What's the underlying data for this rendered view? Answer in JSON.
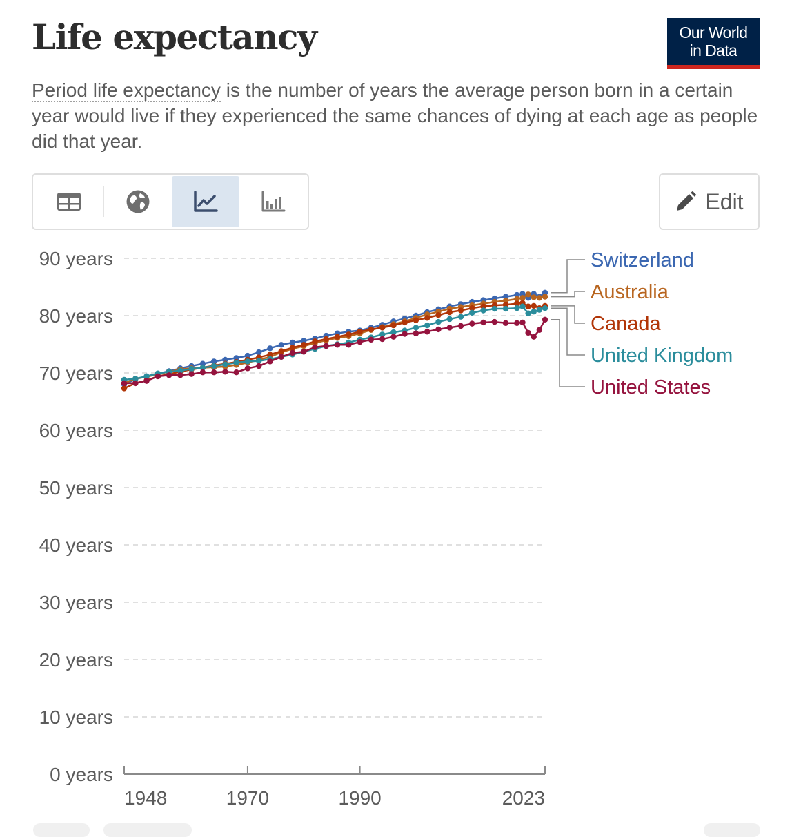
{
  "header": {
    "title": "Life expectancy",
    "logo_line1": "Our World",
    "logo_line2": "in Data",
    "subtitle_term": "Period life expectancy",
    "subtitle_rest": " is the number of years the average person born in a certain year would live if they experienced the same chances of dying at each age as people did that year."
  },
  "toolbar": {
    "tabs": [
      {
        "icon": "table-icon",
        "active": false
      },
      {
        "icon": "globe-icon",
        "active": false
      },
      {
        "icon": "line-chart-icon",
        "active": true
      },
      {
        "icon": "bar-chart-icon",
        "active": false
      }
    ],
    "edit_label": "Edit",
    "edit_icon": "pencil-icon"
  },
  "colors": {
    "text": "#5b5b5b",
    "tab_active": "#dbe5f0",
    "logo_bg": "#002147",
    "logo_accent": "#ce261e"
  },
  "chart_data": {
    "type": "line",
    "x": [
      1948,
      1950,
      1952,
      1954,
      1956,
      1958,
      1960,
      1962,
      1964,
      1966,
      1968,
      1970,
      1972,
      1974,
      1976,
      1978,
      1980,
      1982,
      1984,
      1986,
      1988,
      1990,
      1992,
      1994,
      1996,
      1998,
      2000,
      2002,
      2004,
      2006,
      2008,
      2010,
      2012,
      2014,
      2016,
      2018,
      2019,
      2020,
      2021,
      2022,
      2023
    ],
    "x_tick_labels": [
      1948,
      1970,
      1990,
      2023
    ],
    "xlim": [
      1948,
      2023
    ],
    "y_ticks": [
      0,
      10,
      20,
      30,
      40,
      50,
      60,
      70,
      80,
      90
    ],
    "y_tick_suffix": " years",
    "ylim": [
      0,
      90
    ],
    "grid": "horizontal-dashed",
    "legend_position": "right",
    "series": [
      {
        "name": "Switzerland",
        "color": "#3b67b1",
        "values": [
          68.0,
          68.9,
          69.4,
          69.9,
          70.3,
          70.8,
          71.2,
          71.6,
          72.0,
          72.3,
          72.6,
          73.0,
          73.6,
          74.3,
          74.9,
          75.3,
          75.6,
          76.0,
          76.5,
          76.9,
          77.2,
          77.4,
          77.9,
          78.4,
          79.0,
          79.5,
          80.0,
          80.6,
          81.1,
          81.6,
          82.0,
          82.4,
          82.7,
          83.0,
          83.3,
          83.6,
          83.8,
          83.1,
          83.8,
          83.3,
          84.0
        ]
      },
      {
        "name": "Australia",
        "color": "#b8651f",
        "values": [
          68.2,
          69.0,
          69.3,
          69.8,
          70.2,
          70.6,
          70.8,
          70.9,
          71.0,
          71.1,
          71.4,
          71.8,
          72.3,
          72.8,
          73.6,
          74.2,
          74.7,
          75.2,
          75.7,
          76.1,
          76.4,
          76.9,
          77.5,
          78.0,
          78.5,
          79.0,
          79.6,
          80.2,
          80.7,
          81.2,
          81.5,
          81.8,
          82.1,
          82.4,
          82.6,
          82.9,
          83.1,
          83.7,
          83.2,
          83.1,
          83.3
        ]
      },
      {
        "name": "Canada",
        "color": "#b13507",
        "values": [
          67.3,
          68.2,
          68.7,
          69.4,
          69.8,
          70.2,
          70.6,
          70.9,
          71.3,
          71.6,
          71.9,
          72.3,
          72.7,
          73.2,
          73.8,
          74.4,
          74.9,
          75.5,
          75.9,
          76.3,
          76.7,
          77.2,
          77.6,
          77.9,
          78.3,
          78.8,
          79.2,
          79.6,
          80.1,
          80.6,
          80.9,
          81.3,
          81.6,
          81.8,
          81.9,
          82.1,
          82.2,
          81.6,
          81.7,
          81.3,
          81.7
        ]
      },
      {
        "name": "United Kingdom",
        "color": "#2b8d9c",
        "values": [
          68.8,
          69.0,
          69.4,
          69.9,
          70.2,
          70.4,
          70.7,
          70.9,
          71.2,
          71.5,
          71.8,
          72.0,
          72.1,
          72.4,
          72.8,
          73.2,
          73.7,
          74.2,
          74.7,
          75.0,
          75.3,
          75.8,
          76.2,
          76.7,
          77.1,
          77.4,
          77.9,
          78.3,
          78.9,
          79.4,
          79.8,
          80.5,
          80.9,
          81.2,
          81.2,
          81.3,
          81.6,
          80.4,
          80.7,
          81.0,
          81.3
        ]
      },
      {
        "name": "United States",
        "color": "#95133e",
        "values": [
          68.2,
          68.2,
          68.6,
          69.4,
          69.6,
          69.6,
          69.8,
          70.1,
          70.1,
          70.2,
          70.1,
          70.8,
          71.2,
          72.0,
          72.8,
          73.5,
          73.7,
          74.5,
          74.7,
          74.9,
          74.9,
          75.4,
          75.8,
          75.9,
          76.3,
          76.8,
          76.9,
          77.2,
          77.6,
          77.9,
          78.2,
          78.6,
          78.8,
          78.9,
          78.7,
          78.7,
          78.8,
          77.0,
          76.3,
          77.5,
          79.3
        ]
      }
    ]
  }
}
